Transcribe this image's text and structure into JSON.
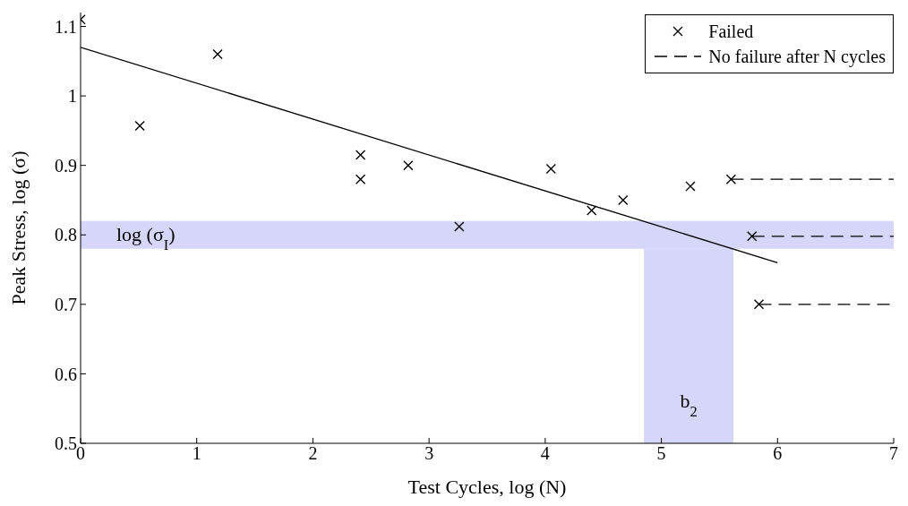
{
  "chart_data": {
    "type": "scatter",
    "xlabel": "Test Cycles, log (N)",
    "ylabel": "Peak Stress, log (σ)",
    "xlim": [
      0,
      7
    ],
    "xticks": [
      0,
      1,
      2,
      3,
      4,
      5,
      6,
      7
    ],
    "ylim": [
      0.5,
      1.12
    ],
    "yticks": [
      0.5,
      0.6,
      0.7,
      0.8,
      0.9,
      {
        "value": 1,
        "label": "1"
      },
      1.1
    ],
    "legend": "top right",
    "series": [
      {
        "name": "Failed",
        "marker": "cross",
        "color": "#000000",
        "x": [
          0,
          0.51,
          1.18,
          2.41,
          2.41,
          2.82,
          3.26,
          4.05,
          4.4,
          4.67,
          5.25,
          5.6,
          5.78,
          5.84
        ],
        "values": [
          1.11,
          0.957,
          1.06,
          0.915,
          0.88,
          0.9,
          0.812,
          0.895,
          0.835,
          0.85,
          0.87,
          0.88,
          0.798,
          0.7
        ]
      },
      {
        "name": "No failure after N cycles",
        "type": "line",
        "line_style": "dashed",
        "marker": "none",
        "color": "#000000",
        "x": [
          5.6,
          7
        ],
        "values": [
          0.88,
          0.88
        ]
      },
      {
        "type": "line",
        "line_style": "dashed",
        "marker": "none",
        "color": "#000000",
        "x": [
          5.78,
          7
        ],
        "values": [
          0.798,
          0.798
        ]
      },
      {
        "type": "line",
        "line_style": "dashed",
        "marker": "none",
        "color": "#000000",
        "x": [
          5.84,
          7
        ],
        "values": [
          0.7,
          0.7
        ]
      },
      {
        "type": "line",
        "line_style": "solid",
        "marker": "none",
        "color": "#000000",
        "x": [
          0,
          6
        ],
        "values": [
          1.07,
          0.76
        ]
      }
    ],
    "bands": [
      {
        "axis": "y",
        "from": 0.78,
        "to": 0.82,
        "label": "log (σ$_{I}$)",
        "color": "#c8c8f8"
      },
      {
        "axis": "x",
        "from": 4.85,
        "to": 5.62,
        "label": "b$_{2}$",
        "color": "#c8c8f8"
      }
    ]
  }
}
